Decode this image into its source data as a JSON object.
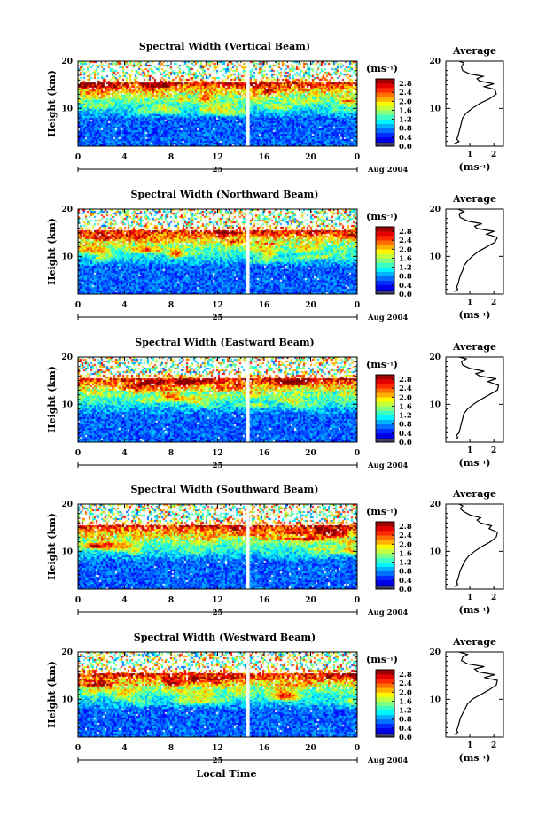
{
  "chart_data": [
    {
      "type": "heatmap",
      "title": "Spectral Width (Vertical Beam)",
      "ylabel": "Height (km)",
      "x_ticks": [
        "0",
        "4",
        "8",
        "12",
        "16",
        "20",
        "0"
      ],
      "y_ticks": [
        "20",
        "10"
      ],
      "date_label": "25",
      "date_suffix": "Aug 2004",
      "xlim": [
        0,
        24
      ],
      "ylim": [
        2,
        20
      ],
      "gap_hour": 14.6,
      "colorbar": {
        "unit": "(ms⁻¹)",
        "ticks": [
          "2.8",
          "2.4",
          "2.0",
          "1.6",
          "1.2",
          "0.8",
          "0.4",
          "0.0"
        ],
        "range": [
          0,
          3.0
        ]
      },
      "average": {
        "title": "Average",
        "xlabel": "(ms⁻¹)",
        "x_ticks": [
          "1",
          "2"
        ],
        "y_ticks": [
          "20",
          "10"
        ],
        "profile": [
          [
            0.35,
            2.5
          ],
          [
            0.55,
            3
          ],
          [
            0.45,
            3.5
          ],
          [
            0.5,
            4
          ],
          [
            0.55,
            5
          ],
          [
            0.6,
            6
          ],
          [
            0.65,
            7
          ],
          [
            0.7,
            8
          ],
          [
            0.85,
            9
          ],
          [
            1.1,
            10
          ],
          [
            1.4,
            11
          ],
          [
            1.8,
            12
          ],
          [
            2.1,
            13
          ],
          [
            2.05,
            14
          ],
          [
            1.6,
            14.6
          ],
          [
            2.0,
            15.2
          ],
          [
            1.4,
            15.8
          ],
          [
            1.3,
            16.3
          ],
          [
            1.55,
            16.8
          ],
          [
            1.0,
            17.3
          ],
          [
            0.7,
            18
          ],
          [
            0.65,
            18.8
          ],
          [
            0.75,
            19.6
          ],
          [
            0.55,
            20
          ]
        ]
      }
    },
    {
      "type": "heatmap",
      "title": "Spectral Width (Northward Beam)",
      "ylabel": "Height (km)",
      "x_ticks": [
        "0",
        "4",
        "8",
        "12",
        "16",
        "20",
        "0"
      ],
      "y_ticks": [
        "20",
        "10"
      ],
      "date_label": "25",
      "date_suffix": "Aug 2004",
      "xlim": [
        0,
        24
      ],
      "ylim": [
        2,
        20
      ],
      "gap_hour": 14.6,
      "colorbar": {
        "unit": "(ms⁻¹)",
        "ticks": [
          "2.8",
          "2.4",
          "2.0",
          "1.6",
          "1.2",
          "0.8",
          "0.4",
          "0.0"
        ],
        "range": [
          0,
          3.0
        ]
      },
      "average": {
        "title": "Average",
        "xlabel": "(ms⁻¹)",
        "x_ticks": [
          "1",
          "2"
        ],
        "y_ticks": [
          "20",
          "10"
        ],
        "profile": [
          [
            0.35,
            2.5
          ],
          [
            0.5,
            3
          ],
          [
            0.45,
            3.5
          ],
          [
            0.5,
            4
          ],
          [
            0.55,
            5
          ],
          [
            0.6,
            6
          ],
          [
            0.7,
            7
          ],
          [
            0.75,
            8
          ],
          [
            0.9,
            9
          ],
          [
            1.1,
            10
          ],
          [
            1.35,
            11
          ],
          [
            1.7,
            12
          ],
          [
            2.05,
            13
          ],
          [
            2.15,
            14
          ],
          [
            1.7,
            14.7
          ],
          [
            2.0,
            15.3
          ],
          [
            1.3,
            15.9
          ],
          [
            1.2,
            16.4
          ],
          [
            1.5,
            16.9
          ],
          [
            0.95,
            17.4
          ],
          [
            0.6,
            18.2
          ],
          [
            0.55,
            19
          ],
          [
            0.75,
            19.5
          ],
          [
            0.5,
            20
          ]
        ]
      }
    },
    {
      "type": "heatmap",
      "title": "Spectral Width (Eastward Beam)",
      "ylabel": "Height (km)",
      "x_ticks": [
        "0",
        "4",
        "8",
        "12",
        "16",
        "20",
        "0"
      ],
      "y_ticks": [
        "20",
        "10"
      ],
      "date_label": "25",
      "date_suffix": "Aug 2004",
      "xlim": [
        0,
        24
      ],
      "ylim": [
        2,
        20
      ],
      "gap_hour": 14.6,
      "colorbar": {
        "unit": "(ms⁻¹)",
        "ticks": [
          "2.8",
          "2.4",
          "2.0",
          "1.6",
          "1.2",
          "0.8",
          "0.4",
          "0.0"
        ],
        "range": [
          0,
          3.0
        ]
      },
      "average": {
        "title": "Average",
        "xlabel": "(ms⁻¹)",
        "x_ticks": [
          "1",
          "2"
        ],
        "y_ticks": [
          "20",
          "10"
        ],
        "profile": [
          [
            0.4,
            2.5
          ],
          [
            0.5,
            3
          ],
          [
            0.45,
            3.5
          ],
          [
            0.55,
            4
          ],
          [
            0.6,
            5
          ],
          [
            0.65,
            6
          ],
          [
            0.7,
            7
          ],
          [
            0.75,
            8
          ],
          [
            0.9,
            9
          ],
          [
            1.15,
            10
          ],
          [
            1.45,
            11
          ],
          [
            1.8,
            12
          ],
          [
            2.15,
            13
          ],
          [
            2.2,
            14
          ],
          [
            1.75,
            14.8
          ],
          [
            2.1,
            15.4
          ],
          [
            1.4,
            16
          ],
          [
            1.25,
            16.5
          ],
          [
            1.6,
            17
          ],
          [
            1.0,
            17.6
          ],
          [
            0.7,
            18.3
          ],
          [
            0.65,
            19
          ],
          [
            0.85,
            19.6
          ],
          [
            0.55,
            20
          ]
        ]
      }
    },
    {
      "type": "heatmap",
      "title": "Spectral Width (Southward Beam)",
      "ylabel": "Height (km)",
      "x_ticks": [
        "0",
        "4",
        "8",
        "12",
        "16",
        "20",
        "0"
      ],
      "y_ticks": [
        "20",
        "10"
      ],
      "date_label": "25",
      "date_suffix": "Aug 2004",
      "xlim": [
        0,
        24
      ],
      "ylim": [
        2,
        20
      ],
      "gap_hour": 14.6,
      "colorbar": {
        "unit": "(ms⁻¹)",
        "ticks": [
          "2.8",
          "2.4",
          "2.0",
          "1.6",
          "1.2",
          "0.8",
          "0.4",
          "0.0"
        ],
        "range": [
          0,
          3.0
        ]
      },
      "average": {
        "title": "Average",
        "xlabel": "(ms⁻¹)",
        "x_ticks": [
          "1",
          "2"
        ],
        "y_ticks": [
          "20",
          "10"
        ],
        "profile": [
          [
            0.35,
            2.5
          ],
          [
            0.5,
            3
          ],
          [
            0.45,
            3.5
          ],
          [
            0.5,
            4
          ],
          [
            0.55,
            5
          ],
          [
            0.6,
            6
          ],
          [
            0.7,
            7
          ],
          [
            0.8,
            8
          ],
          [
            0.95,
            9
          ],
          [
            1.2,
            10
          ],
          [
            1.5,
            11
          ],
          [
            1.85,
            12
          ],
          [
            2.1,
            13
          ],
          [
            2.15,
            14
          ],
          [
            1.8,
            14.8
          ],
          [
            1.9,
            15.4
          ],
          [
            1.45,
            16
          ],
          [
            1.3,
            16.6
          ],
          [
            1.45,
            17.1
          ],
          [
            1.0,
            17.7
          ],
          [
            0.75,
            18.4
          ],
          [
            0.6,
            19
          ],
          [
            0.7,
            19.6
          ],
          [
            0.55,
            20
          ]
        ]
      }
    },
    {
      "type": "heatmap",
      "title": "Spectral Width (Westward Beam)",
      "ylabel": "Height (km)",
      "x_ticks": [
        "0",
        "4",
        "8",
        "12",
        "16",
        "20",
        "0"
      ],
      "y_ticks": [
        "20",
        "10"
      ],
      "date_label": "25",
      "date_suffix": "Aug 2004",
      "xlim": [
        0,
        24
      ],
      "ylim": [
        2,
        20
      ],
      "gap_hour": 14.6,
      "colorbar": {
        "unit": "(ms⁻¹)",
        "ticks": [
          "2.8",
          "2.4",
          "2.0",
          "1.6",
          "1.2",
          "0.8",
          "0.4",
          "0.0"
        ],
        "range": [
          0,
          3.0
        ]
      },
      "average": {
        "title": "Average",
        "xlabel": "(ms⁻¹)",
        "x_ticks": [
          "1",
          "2"
        ],
        "y_ticks": [
          "20",
          "10"
        ],
        "profile": [
          [
            0.35,
            2.5
          ],
          [
            0.5,
            3
          ],
          [
            0.45,
            3.5
          ],
          [
            0.5,
            4
          ],
          [
            0.55,
            5
          ],
          [
            0.6,
            6
          ],
          [
            0.7,
            7
          ],
          [
            0.8,
            8
          ],
          [
            0.9,
            9
          ],
          [
            1.1,
            10
          ],
          [
            1.45,
            11
          ],
          [
            1.8,
            12
          ],
          [
            2.1,
            13
          ],
          [
            2.15,
            14
          ],
          [
            1.6,
            14.6
          ],
          [
            2.05,
            15.2
          ],
          [
            1.35,
            15.8
          ],
          [
            1.2,
            16.4
          ],
          [
            1.6,
            16.9
          ],
          [
            0.9,
            17.5
          ],
          [
            0.65,
            18.2
          ],
          [
            0.7,
            18.9
          ],
          [
            0.9,
            19.5
          ],
          [
            0.55,
            20
          ]
        ]
      }
    }
  ],
  "footer": {
    "xlabel": "Local Time"
  }
}
